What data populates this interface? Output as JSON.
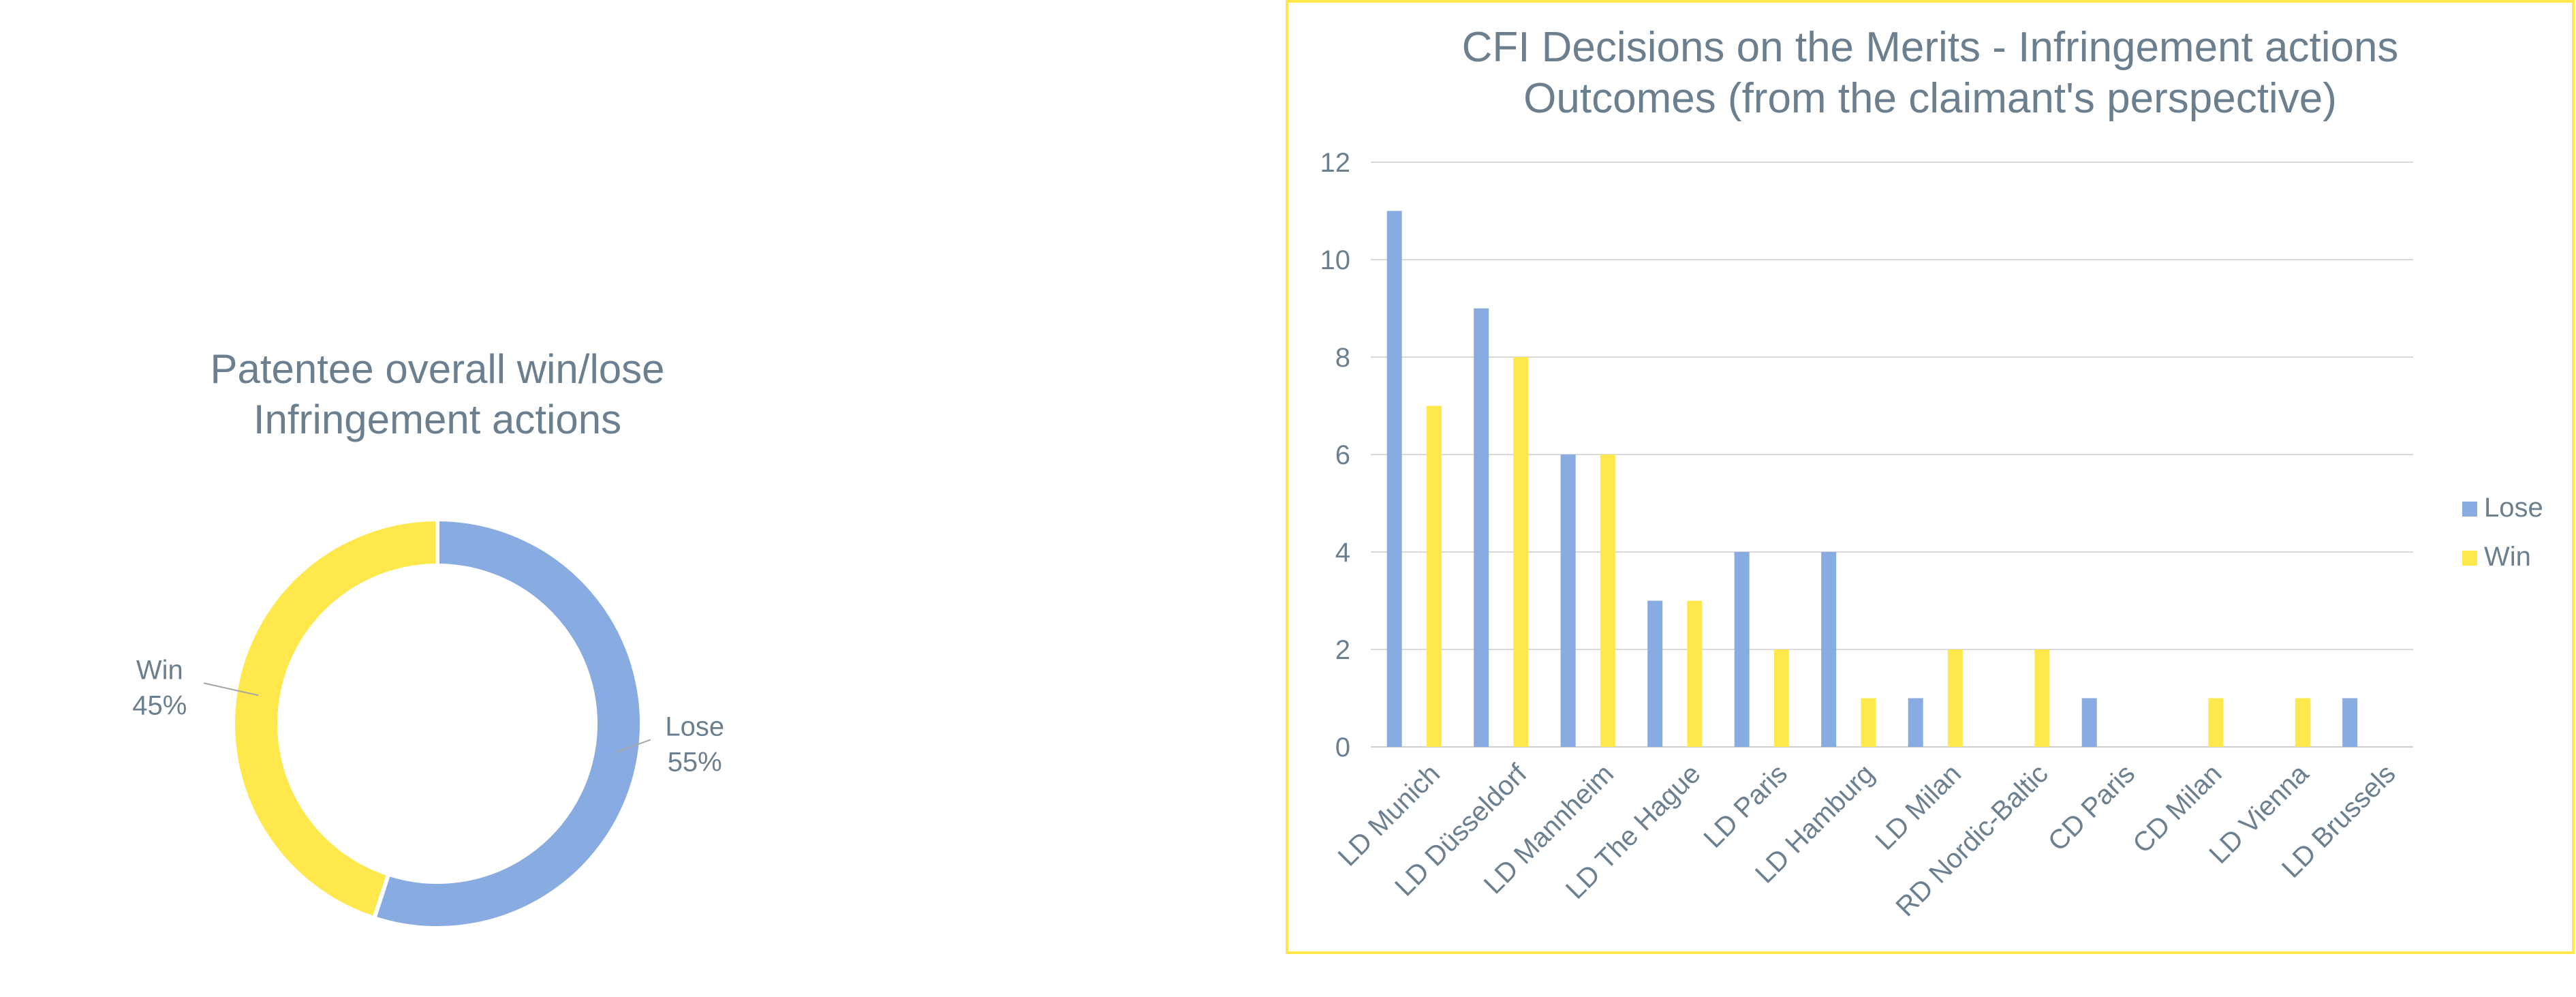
{
  "colors": {
    "lose": "#88abe2",
    "win": "#ffe84c",
    "text": "#6b7f8e",
    "grid": "#d9d9d9",
    "frame": "#ffe84c"
  },
  "chart_data": [
    {
      "type": "pie",
      "title": "Patentee overall win/lose",
      "subtitle": "Infringement actions",
      "slices": [
        {
          "name": "Lose",
          "value": 55,
          "label": "55%"
        },
        {
          "name": "Win",
          "value": 45,
          "label": "45%"
        }
      ]
    },
    {
      "type": "bar",
      "title": "CFI Decisions on the Merits - Infringement actions",
      "subtitle": "Outcomes (from the claimant's perspective)",
      "categories": [
        "LD Munich",
        "LD Düsseldorf",
        "LD Mannheim",
        "LD The Hague",
        "LD Paris",
        "LD Hamburg",
        "LD Milan",
        "RD Nordic-Baltic",
        "CD Paris",
        "CD Milan",
        "LD Vienna",
        "LD Brussels"
      ],
      "series": [
        {
          "name": "Lose",
          "values": [
            11,
            9,
            6,
            3,
            4,
            4,
            1,
            0,
            1,
            0,
            0,
            1
          ]
        },
        {
          "name": "Win",
          "values": [
            7,
            8,
            6,
            3,
            2,
            1,
            2,
            2,
            0,
            1,
            1,
            0
          ]
        }
      ],
      "ylim": [
        0,
        12
      ],
      "yticks": [
        "0",
        "2",
        "4",
        "6",
        "8",
        "10",
        "12"
      ],
      "grid": true,
      "legend": "right"
    }
  ]
}
